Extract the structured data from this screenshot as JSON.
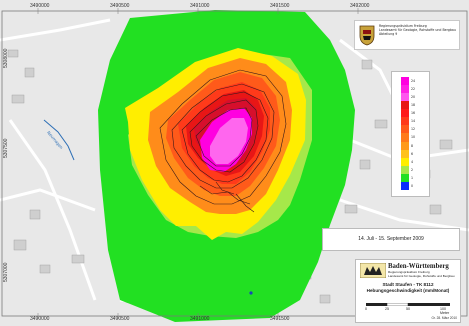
{
  "colors": {
    "outer_green": "#22e022",
    "light_green": "#a6e84a",
    "yellow": "#ffee00",
    "orange": "#ff8c1a",
    "red_orange": "#ff4a1a",
    "red": "#e81616",
    "magenta": "#ff00e0",
    "pink": "#ff66ee",
    "gray_background": "#e4e4e4",
    "river_blue": "#2d6fb6"
  },
  "axes": {
    "x_top": [
      "3490000",
      "3490500",
      "3491000",
      "3491500",
      "3492000"
    ],
    "x_bottom": [
      "3490000",
      "3490500",
      "3491000",
      "3491500",
      "3492000"
    ],
    "y_left": [
      "5308000",
      "5307500",
      "5307000"
    ]
  },
  "header": {
    "agency_lines": [
      "Regierungspräsidium Freiburg",
      "Landesamt für Geologie, Rohstoffe und Bergbau",
      "Abteilung 9"
    ]
  },
  "legend": {
    "classes": [
      {
        "label": "24",
        "color": "#ff00e0"
      },
      {
        "label": "22",
        "color": "#ff20e4"
      },
      {
        "label": "20",
        "color": "#ff55ee"
      },
      {
        "label": "18",
        "color": "#e81616"
      },
      {
        "label": "16",
        "color": "#ff1a1a"
      },
      {
        "label": "14",
        "color": "#ff3a1a"
      },
      {
        "label": "12",
        "color": "#ff5a1a"
      },
      {
        "label": "10",
        "color": "#ff7a1a"
      },
      {
        "label": "8",
        "color": "#ff9a1a"
      },
      {
        "label": "6",
        "color": "#ffc21a"
      },
      {
        "label": "4",
        "color": "#ffee00"
      },
      {
        "label": "2",
        "color": "#a6e84a"
      },
      {
        "label": "1",
        "color": "#22e022"
      },
      {
        "label": "0",
        "color": "#0a2dff"
      }
    ]
  },
  "period": "14. Juli - 15. September 2009",
  "title_block": {
    "state_name": "Baden-Württemberg",
    "agency_sub_lines": [
      "Regierungspräsidium Freiburg",
      "Landesamt für Geologie, Rohstoffe und Bergbau"
    ],
    "place": "Stadt Staufen - TK 8112",
    "subject": "Hebungsgeschwindigkeit (mm/Monat)",
    "scale_labels": [
      "0",
      "25",
      "50",
      "100 Meter"
    ],
    "date": "Gr. 28. März 2010"
  },
  "map_labels": {
    "river": "Neumagen"
  }
}
